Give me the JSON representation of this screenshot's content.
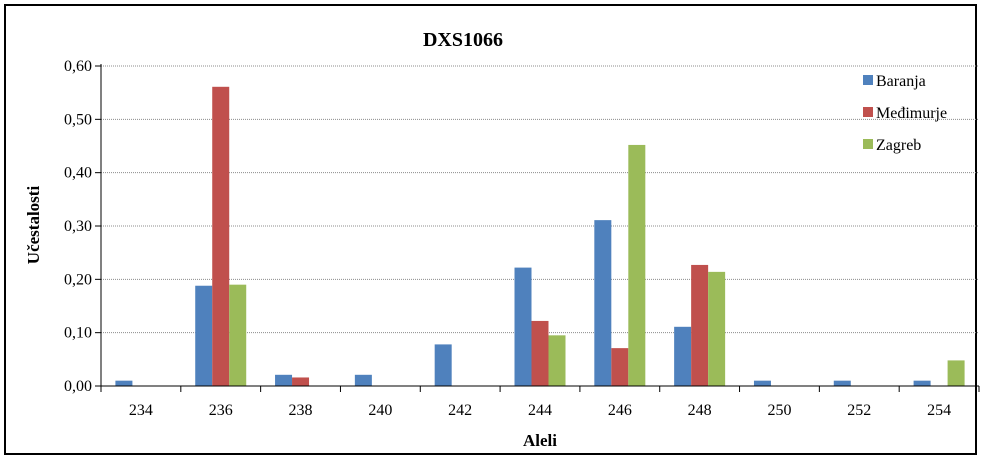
{
  "chart_data": {
    "type": "bar",
    "title": "DXS1066",
    "xlabel": "Aleli",
    "ylabel": "Učestalosti",
    "categories": [
      "234",
      "236",
      "238",
      "240",
      "242",
      "244",
      "246",
      "248",
      "250",
      "252",
      "254"
    ],
    "series": [
      {
        "name": "Baranja",
        "color": "#4f81bd",
        "values": [
          0.01,
          0.188,
          0.021,
          0.021,
          0.078,
          0.222,
          0.311,
          0.111,
          0.01,
          0.01,
          0.01
        ]
      },
      {
        "name": "Međimurje",
        "color": "#c0504d",
        "values": [
          0,
          0.561,
          0.016,
          0,
          0,
          0.122,
          0.071,
          0.227,
          0,
          0,
          0
        ]
      },
      {
        "name": "Zagreb",
        "color": "#9bbb59",
        "values": [
          0,
          0.19,
          0,
          0,
          0,
          0.095,
          0.452,
          0.214,
          0,
          0,
          0.048
        ]
      }
    ],
    "ylim": [
      0,
      0.6
    ],
    "yticks": [
      "0,00",
      "0,10",
      "0,20",
      "0,30",
      "0,40",
      "0,50",
      "0,60"
    ],
    "grid": true,
    "legend": "top-right"
  }
}
